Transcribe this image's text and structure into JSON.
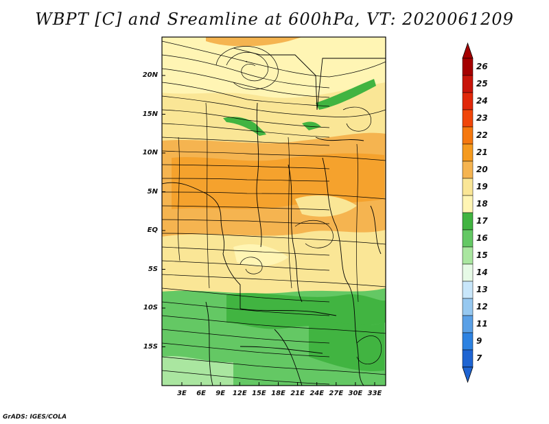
{
  "title": "WBPT [C] and Sreamline at 600hPa, VT: 2020061209",
  "credit": "GrADS: IGES/COLA",
  "map": {
    "lat_labels": [
      "20N",
      "15N",
      "10N",
      "5N",
      "EQ",
      "5S",
      "10S",
      "15S"
    ],
    "lon_labels": [
      "3E",
      "6E",
      "9E",
      "12E",
      "15E",
      "18E",
      "21E",
      "24E",
      "27E",
      "30E",
      "33E"
    ]
  },
  "legend": {
    "labels": [
      "26",
      "25",
      "24",
      "23",
      "22",
      "21",
      "20",
      "19",
      "18",
      "17",
      "16",
      "15",
      "14",
      "13",
      "12",
      "11",
      "9",
      "7"
    ],
    "colors": [
      "#a50000",
      "#c8140a",
      "#e1280a",
      "#f0460a",
      "#f5780f",
      "#f59a1e",
      "#f5b450",
      "#fae696",
      "#fff5b4",
      "#41b441",
      "#64c864",
      "#aae6a0",
      "#e6fae6",
      "#c8e6fa",
      "#96c8f0",
      "#5aa0e6",
      "#2d82e1",
      "#1e64d2"
    ]
  }
}
